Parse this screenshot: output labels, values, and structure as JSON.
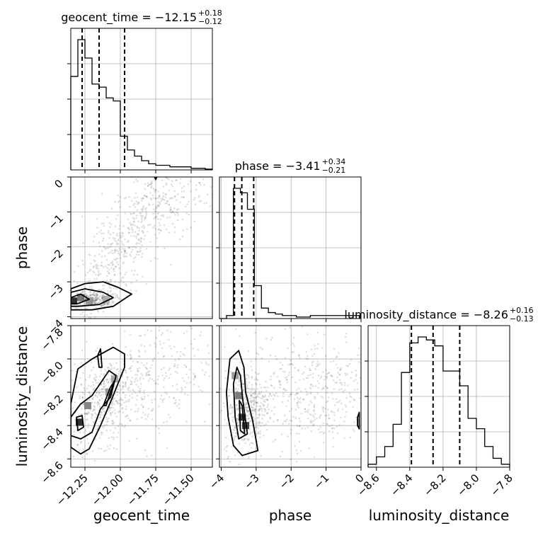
{
  "chart_data": {
    "type": "corner",
    "parameters": [
      "geocent_time",
      "phase",
      "luminosity_distance"
    ],
    "axis_labels": {
      "geocent_time": "geocent_time",
      "phase": "phase",
      "luminosity_distance": "luminosity_distance"
    },
    "ranges": {
      "geocent_time": [
        -12.35,
        -11.35
      ],
      "phase": [
        -4.05,
        0.0
      ],
      "luminosity_distance": [
        -8.65,
        -7.8
      ]
    },
    "ticks": {
      "geocent_time": [
        -12.25,
        -12.0,
        -11.75,
        -11.5
      ],
      "phase": [
        -4,
        -3,
        -2,
        -1,
        0
      ],
      "luminosity_distance": [
        -8.6,
        -8.4,
        -8.2,
        -8.0,
        -7.8
      ]
    },
    "tick_labels": {
      "geocent_time": [
        "−12.25",
        "−12.00",
        "−11.75",
        "−11.50"
      ],
      "phase": [
        "−4",
        "−3",
        "−2",
        "−1",
        "0"
      ],
      "luminosity_distance": [
        "−8.6",
        "−8.4",
        "−8.2",
        "−8.0",
        "−7.8"
      ]
    },
    "titles": [
      {
        "param": "geocent_time",
        "text": "geocent_time = −12.15",
        "sup": "+0.18",
        "sub": "−0.12"
      },
      {
        "param": "phase",
        "text": "phase = −3.41",
        "sup": "+0.34",
        "sub": "−0.21"
      },
      {
        "param": "luminosity_distance",
        "text": "luminosity_distance = −8.26",
        "sup": "+0.16",
        "sub": "−0.13"
      }
    ],
    "quantiles": {
      "geocent_time": [
        -12.27,
        -12.15,
        -11.97
      ],
      "phase": [
        -3.62,
        -3.41,
        -3.07
      ],
      "luminosity_distance": [
        -8.39,
        -8.26,
        -8.1
      ]
    },
    "histograms": {
      "geocent_time": {
        "edges": [
          -12.35,
          -12.3,
          -12.25,
          -12.2,
          -12.15,
          -12.1,
          -12.05,
          -12.0,
          -11.95,
          -11.9,
          -11.85,
          -11.8,
          -11.75,
          -11.7,
          -11.65,
          -11.6,
          -11.55,
          -11.5,
          -11.45,
          -11.4,
          -11.35
        ],
        "counts": [
          0.61,
          0.85,
          0.73,
          0.56,
          0.54,
          0.47,
          0.45,
          0.22,
          0.13,
          0.09,
          0.06,
          0.04,
          0.03,
          0.03,
          0.02,
          0.02,
          0.02,
          0.01,
          0.01,
          0.005
        ]
      },
      "phase": {
        "edges": [
          -4.05,
          -3.85,
          -3.65,
          -3.45,
          -3.25,
          -3.05,
          -2.85,
          -2.65,
          -2.45,
          -2.25,
          -2.05,
          -1.85,
          -1.65,
          -1.45,
          -1.25,
          -1.05,
          -0.85,
          -0.65,
          -0.45,
          -0.25,
          -0.05
        ],
        "counts": [
          0.0,
          0.02,
          0.87,
          0.84,
          0.73,
          0.22,
          0.07,
          0.04,
          0.03,
          0.02,
          0.02,
          0.01,
          0.01,
          0.02,
          0.02,
          0.02,
          0.02,
          0.02,
          0.02,
          0.02
        ]
      },
      "luminosity_distance": {
        "edges": [
          -8.65,
          -8.6,
          -8.55,
          -8.5,
          -8.45,
          -8.4,
          -8.35,
          -8.3,
          -8.25,
          -8.2,
          -8.15,
          -8.1,
          -8.05,
          -8.0,
          -7.95,
          -7.9,
          -7.85,
          -7.8
        ],
        "counts": [
          0.02,
          0.07,
          0.14,
          0.29,
          0.64,
          0.84,
          0.88,
          0.86,
          0.82,
          0.65,
          0.65,
          0.55,
          0.33,
          0.26,
          0.14,
          0.06,
          0.02
        ]
      }
    },
    "scatter_blobs": [
      {
        "panel": "phase_vs_geocent_time",
        "cx": -12.05,
        "cy": -2.5,
        "sx": 0.18,
        "sy": 1.1,
        "rho": 0.75,
        "n": 420
      },
      {
        "panel": "phase_vs_geocent_time",
        "cx": -11.7,
        "cy": -0.8,
        "sx": 0.2,
        "sy": 0.6,
        "rho": 0.5,
        "n": 260
      },
      {
        "panel": "phase_vs_geocent_time",
        "cx": -12.2,
        "cy": -3.5,
        "sx": 0.08,
        "sy": 0.12,
        "rho": 0.0,
        "n": 260
      },
      {
        "panel": "luminosity_distance_vs_geocent_time",
        "cx": -12.1,
        "cy": -8.25,
        "sx": 0.15,
        "sy": 0.14,
        "rho": 0.45,
        "n": 500
      },
      {
        "panel": "luminosity_distance_vs_geocent_time",
        "cx": -11.7,
        "cy": -8.1,
        "sx": 0.22,
        "sy": 0.2,
        "rho": 0.3,
        "n": 260
      },
      {
        "panel": "luminosity_distance_vs_phase",
        "cx": -3.3,
        "cy": -8.3,
        "sx": 0.3,
        "sy": 0.12,
        "rho": 0.2,
        "n": 420
      },
      {
        "panel": "luminosity_distance_vs_phase",
        "cx": -1.5,
        "cy": -8.2,
        "sx": 1.0,
        "sy": 0.18,
        "rho": 0.0,
        "n": 500
      }
    ],
    "density_cells": [
      {
        "panel": "phase_vs_geocent_time",
        "x": -12.33,
        "y": -3.55,
        "level": 0.95
      },
      {
        "panel": "phase_vs_geocent_time",
        "x": -12.28,
        "y": -3.45,
        "level": 0.6
      },
      {
        "panel": "phase_vs_geocent_time",
        "x": -12.22,
        "y": -3.55,
        "level": 0.45
      },
      {
        "panel": "phase_vs_geocent_time",
        "x": -12.1,
        "y": -3.5,
        "level": 0.35
      },
      {
        "panel": "luminosity_distance_vs_geocent_time",
        "x": -12.29,
        "y": -8.38,
        "level": 0.95
      },
      {
        "panel": "luminosity_distance_vs_geocent_time",
        "x": -12.23,
        "y": -8.28,
        "level": 0.55
      },
      {
        "panel": "luminosity_distance_vs_geocent_time",
        "x": -12.08,
        "y": -8.2,
        "level": 0.45
      },
      {
        "panel": "luminosity_distance_vs_geocent_time",
        "x": -12.04,
        "y": -8.12,
        "level": 0.4
      },
      {
        "panel": "luminosity_distance_vs_phase",
        "x": -3.5,
        "y": -8.22,
        "level": 0.6
      },
      {
        "panel": "luminosity_distance_vs_phase",
        "x": -3.4,
        "y": -8.35,
        "level": 0.9
      },
      {
        "panel": "luminosity_distance_vs_phase",
        "x": -3.3,
        "y": -8.4,
        "level": 0.85
      },
      {
        "panel": "luminosity_distance_vs_phase",
        "x": -3.6,
        "y": -8.1,
        "level": 0.45
      }
    ],
    "contours": [
      {
        "panel": "phase_vs_geocent_time",
        "points": [
          [
            -12.35,
            -3.2
          ],
          [
            -12.25,
            -3.05
          ],
          [
            -12.12,
            -3.0
          ],
          [
            -12.02,
            -3.15
          ],
          [
            -11.92,
            -3.35
          ],
          [
            -12.05,
            -3.7
          ],
          [
            -12.2,
            -3.8
          ],
          [
            -12.35,
            -3.8
          ]
        ]
      },
      {
        "panel": "phase_vs_geocent_time",
        "points": [
          [
            -12.35,
            -3.3
          ],
          [
            -12.25,
            -3.2
          ],
          [
            -12.12,
            -3.3
          ],
          [
            -12.05,
            -3.45
          ],
          [
            -12.15,
            -3.65
          ],
          [
            -12.3,
            -3.7
          ],
          [
            -12.35,
            -3.7
          ]
        ]
      },
      {
        "panel": "phase_vs_geocent_time",
        "points": [
          [
            -12.35,
            -3.45
          ],
          [
            -12.28,
            -3.35
          ],
          [
            -12.22,
            -3.5
          ],
          [
            -12.3,
            -3.62
          ],
          [
            -12.35,
            -3.62
          ]
        ]
      },
      {
        "panel": "phase_vs_geocent_time",
        "points": [
          [
            -11.76,
            0.02
          ],
          [
            -11.75,
            -0.07
          ],
          [
            -11.74,
            0.02
          ]
        ]
      },
      {
        "panel": "luminosity_distance_vs_geocent_time",
        "points": [
          [
            -12.35,
            -8.27
          ],
          [
            -12.3,
            -8.06
          ],
          [
            -12.2,
            -8.0
          ],
          [
            -12.05,
            -7.93
          ],
          [
            -11.97,
            -7.97
          ],
          [
            -11.97,
            -8.05
          ],
          [
            -12.06,
            -8.24
          ],
          [
            -12.14,
            -8.4
          ],
          [
            -12.22,
            -8.54
          ],
          [
            -12.28,
            -8.57
          ],
          [
            -12.35,
            -8.53
          ]
        ]
      },
      {
        "panel": "luminosity_distance_vs_geocent_time",
        "points": [
          [
            -12.35,
            -8.35
          ],
          [
            -12.28,
            -8.27
          ],
          [
            -12.2,
            -8.22
          ],
          [
            -12.08,
            -8.07
          ],
          [
            -12.03,
            -8.1
          ],
          [
            -12.07,
            -8.23
          ],
          [
            -12.14,
            -8.3
          ],
          [
            -12.2,
            -8.44
          ],
          [
            -12.28,
            -8.48
          ],
          [
            -12.35,
            -8.46
          ]
        ]
      },
      {
        "panel": "luminosity_distance_vs_geocent_time",
        "points": [
          [
            -12.31,
            -8.35
          ],
          [
            -12.27,
            -8.34
          ],
          [
            -12.26,
            -8.41
          ],
          [
            -12.3,
            -8.43
          ]
        ]
      },
      {
        "panel": "luminosity_distance_vs_geocent_time",
        "points": [
          [
            -12.12,
            -8.28
          ],
          [
            -12.07,
            -8.17
          ],
          [
            -12.04,
            -8.13
          ],
          [
            -12.07,
            -8.2
          ],
          [
            -12.1,
            -8.28
          ]
        ]
      },
      {
        "panel": "luminosity_distance_vs_geocent_time",
        "points": [
          [
            -12.16,
            -7.98
          ],
          [
            -12.14,
            -7.94
          ],
          [
            -12.13,
            -8.05
          ],
          [
            -12.15,
            -8.05
          ]
        ]
      },
      {
        "panel": "luminosity_distance_vs_phase",
        "points": [
          [
            -3.85,
            -8.2
          ],
          [
            -3.75,
            -8.0
          ],
          [
            -3.5,
            -7.95
          ],
          [
            -3.35,
            -8.05
          ],
          [
            -3.3,
            -8.2
          ],
          [
            -3.1,
            -8.37
          ],
          [
            -2.95,
            -8.55
          ],
          [
            -3.4,
            -8.58
          ],
          [
            -3.65,
            -8.52
          ],
          [
            -3.8,
            -8.35
          ]
        ]
      },
      {
        "panel": "luminosity_distance_vs_phase",
        "points": [
          [
            -3.65,
            -8.15
          ],
          [
            -3.55,
            -8.05
          ],
          [
            -3.45,
            -8.1
          ],
          [
            -3.38,
            -8.25
          ],
          [
            -3.25,
            -8.45
          ],
          [
            -3.5,
            -8.48
          ],
          [
            -3.6,
            -8.35
          ]
        ]
      },
      {
        "panel": "luminosity_distance_vs_phase",
        "points": [
          [
            -3.48,
            -8.25
          ],
          [
            -3.4,
            -8.28
          ],
          [
            -3.33,
            -8.45
          ],
          [
            -3.45,
            -8.43
          ]
        ]
      },
      {
        "panel": "luminosity_distance_vs_phase",
        "points": [
          [
            -0.05,
            -8.32
          ],
          [
            -0.1,
            -8.35
          ],
          [
            -0.1,
            -8.4
          ],
          [
            -0.05,
            -8.42
          ]
        ]
      }
    ],
    "grid": true
  }
}
